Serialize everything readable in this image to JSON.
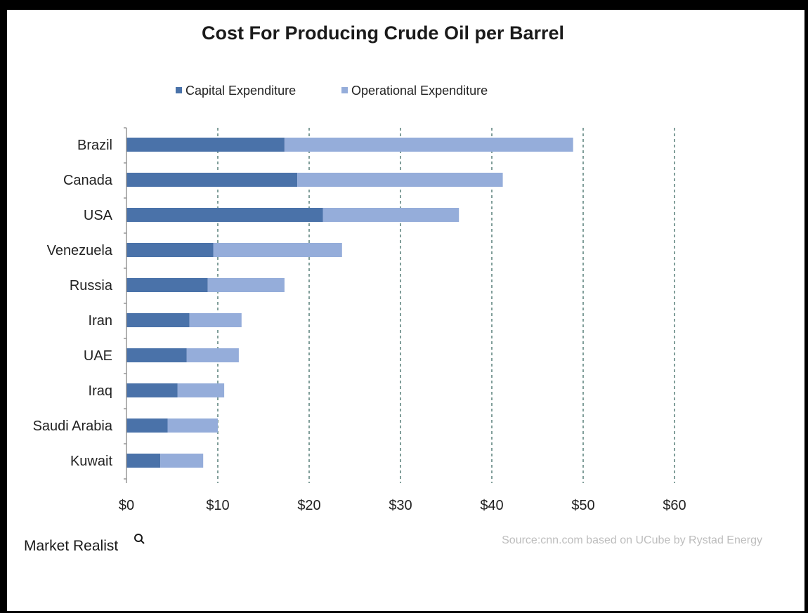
{
  "chart_data": {
    "type": "bar",
    "orientation": "horizontal",
    "stacked": true,
    "title": "Cost For Producing Crude Oil per Barrel",
    "categories": [
      "Brazil",
      "Canada",
      "USA",
      "Venezuela",
      "Russia",
      "Iran",
      "UAE",
      "Iraq",
      "Saudi Arabia",
      "Kuwait"
    ],
    "series": [
      {
        "name": "Capital Expenditure",
        "color": "#4a72a9",
        "values": [
          17.3,
          18.7,
          21.5,
          9.5,
          8.9,
          6.9,
          6.6,
          5.6,
          4.5,
          3.7
        ]
      },
      {
        "name": "Operational Expenditure",
        "color": "#95adda",
        "values": [
          31.6,
          22.5,
          14.9,
          14.1,
          8.4,
          5.7,
          5.7,
          5.1,
          5.5,
          4.7
        ]
      }
    ],
    "xlim": [
      0,
      60
    ],
    "x_ticks": [
      0,
      10,
      20,
      30,
      40,
      50,
      60
    ],
    "x_tick_labels": [
      "$0",
      "$10",
      "$20",
      "$30",
      "$40",
      "$50",
      "$60"
    ],
    "grid": "vertical dashed",
    "legend_position": "top",
    "source": "Source:cnn.com based on UCube by Rystad Energy",
    "brand": "Market Realist"
  },
  "colors": {
    "capex": "#4a72a9",
    "opex": "#95adda",
    "grid": "#3d6b63",
    "axis": "#888888"
  },
  "icons": {
    "brand_mark": "magnifier-icon"
  }
}
